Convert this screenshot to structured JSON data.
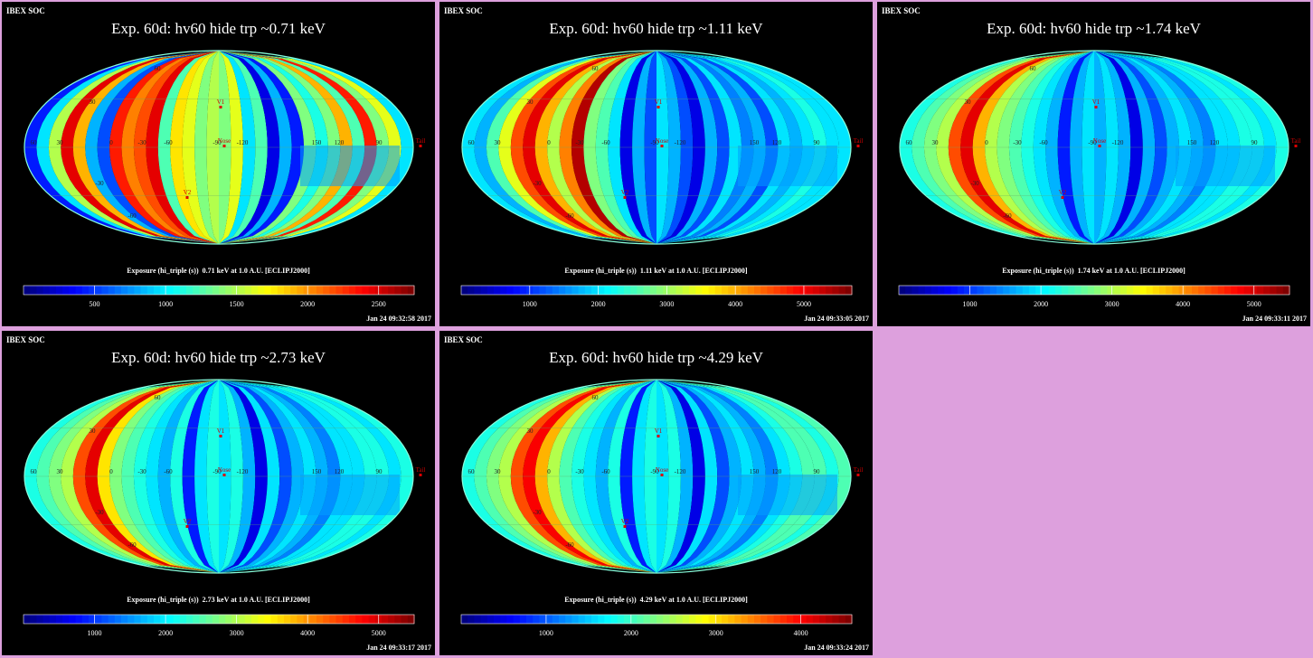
{
  "background_color": "#dda0dd",
  "panels": [
    {
      "org": "IBEX SOC",
      "title": "Exp.   60d: hv60 hide trp ~0.71 keV",
      "colorbar_label": "Exposure (hi_triple (s))  0.71 keV at 1.0 A.U. [ECLIPJ2000]",
      "timestamp": "Jan 24 09:32:58 2017"
    },
    {
      "org": "IBEX SOC",
      "title": "Exp.   60d: hv60 hide trp ~1.11 keV",
      "colorbar_label": "Exposure (hi_triple (s))  1.11 keV at 1.0 A.U. [ECLIPJ2000]",
      "timestamp": "Jan 24 09:33:05 2017"
    },
    {
      "org": "IBEX SOC",
      "title": "Exp.   60d: hv60 hide trp ~1.74 keV",
      "colorbar_label": "Exposure (hi_triple (s))  1.74 keV at 1.0 A.U. [ECLIPJ2000]",
      "timestamp": "Jan 24 09:33:11 2017"
    },
    {
      "org": "IBEX SOC",
      "title": "Exp.   60d: hv60 hide trp ~2.73 keV",
      "colorbar_label": "Exposure (hi_triple (s))  2.73 keV at 1.0 A.U. [ECLIPJ2000]",
      "timestamp": "Jan 24 09:33:17 2017"
    },
    {
      "org": "IBEX SOC",
      "title": "Exp.   60d: hv60 hide trp ~4.29 keV",
      "colorbar_label": "Exposure (hi_triple (s))  4.29 keV at 1.0 A.U. [ECLIPJ2000]",
      "timestamp": "Jan 24 09:33:24 2017"
    }
  ],
  "chart_data": [
    {
      "type": "heatmap",
      "title": "Exp.   60d: hv60 hide trp ~0.71 keV",
      "projection": "mollweide",
      "lon_labels": [
        "60",
        "30",
        "0",
        "-30",
        "-60",
        "-90",
        "-120",
        "150",
        "120",
        "90"
      ],
      "lat_labels": [
        "60",
        "30",
        "-30",
        "-60"
      ],
      "markers": [
        "V1",
        "Nose",
        "V2",
        "Tail"
      ],
      "colorbar": {
        "ticks": [
          500,
          1000,
          1500,
          2000,
          2500
        ],
        "range": [
          0,
          2750
        ],
        "colormap": "jet"
      },
      "band_values": [
        0.15,
        0.35,
        0.55,
        0.9,
        0.7,
        0.3,
        0.2,
        0.85,
        0.75,
        0.8,
        0.9,
        0.45,
        0.65,
        0.6,
        0.5,
        0.55,
        0.5,
        0.6,
        0.35,
        0.45,
        0.1,
        0.3,
        0.15,
        0.5,
        0.4,
        0.5,
        0.7,
        0.45,
        0.85,
        0.5,
        0.6,
        0.35
      ]
    },
    {
      "type": "heatmap",
      "title": "Exp.   60d: hv60 hide trp ~1.11 keV",
      "projection": "mollweide",
      "lon_labels": [
        "60",
        "30",
        "0",
        "-30",
        "-60",
        "-90",
        "-120",
        "150",
        "120",
        "90"
      ],
      "lat_labels": [
        "60",
        "30",
        "-30",
        "-60"
      ],
      "markers": [
        "V1",
        "Nose",
        "V2",
        "Tail"
      ],
      "colorbar": {
        "ticks": [
          1000,
          2000,
          3000,
          4000,
          5000
        ],
        "range": [
          0,
          5700
        ],
        "colormap": "jet"
      },
      "band_values": [
        0.35,
        0.3,
        0.45,
        0.6,
        0.8,
        0.9,
        0.7,
        0.55,
        0.75,
        0.95,
        0.5,
        0.45,
        0.35,
        0.1,
        0.3,
        0.2,
        0.35,
        0.3,
        0.2,
        0.1,
        0.3,
        0.2,
        0.35,
        0.25,
        0.3,
        0.2,
        0.35,
        0.3,
        0.35,
        0.4,
        0.35,
        0.35
      ]
    },
    {
      "type": "heatmap",
      "title": "Exp.   60d: hv60 hide trp ~1.74 keV",
      "projection": "mollweide",
      "lon_labels": [
        "60",
        "30",
        "0",
        "-30",
        "-60",
        "-90",
        "-120",
        "150",
        "120",
        "90"
      ],
      "lat_labels": [
        "60",
        "30",
        "-30",
        "-60"
      ],
      "markers": [
        "V1",
        "Nose",
        "V2",
        "Tail"
      ],
      "colorbar": {
        "ticks": [
          1000,
          2000,
          3000,
          4000,
          5000
        ],
        "range": [
          0,
          5500
        ],
        "colormap": "jet"
      },
      "band_values": [
        0.4,
        0.45,
        0.5,
        0.55,
        0.8,
        0.9,
        0.7,
        0.55,
        0.5,
        0.45,
        0.4,
        0.35,
        0.3,
        0.15,
        0.3,
        0.35,
        0.3,
        0.35,
        0.3,
        0.1,
        0.3,
        0.2,
        0.3,
        0.35,
        0.3,
        0.25,
        0.35,
        0.35,
        0.4,
        0.4,
        0.35,
        0.4
      ]
    },
    {
      "type": "heatmap",
      "title": "Exp.   60d: hv60 hide trp ~2.73 keV",
      "projection": "mollweide",
      "lon_labels": [
        "60",
        "30",
        "0",
        "-30",
        "-60",
        "-90",
        "-120",
        "150",
        "120",
        "90"
      ],
      "lat_labels": [
        "60",
        "30",
        "-30",
        "-60"
      ],
      "markers": [
        "V1",
        "Nose",
        "V2",
        "Tail"
      ],
      "colorbar": {
        "ticks": [
          1000,
          2000,
          3000,
          4000,
          5000
        ],
        "range": [
          0,
          5500
        ],
        "colormap": "jet"
      },
      "band_values": [
        0.4,
        0.45,
        0.5,
        0.55,
        0.8,
        0.9,
        0.65,
        0.5,
        0.45,
        0.4,
        0.35,
        0.3,
        0.4,
        0.15,
        0.35,
        0.4,
        0.35,
        0.4,
        0.3,
        0.1,
        0.35,
        0.2,
        0.3,
        0.35,
        0.3,
        0.25,
        0.35,
        0.35,
        0.4,
        0.4,
        0.35,
        0.4
      ]
    },
    {
      "type": "heatmap",
      "title": "Exp.   60d: hv60 hide trp ~4.29 keV",
      "projection": "mollweide",
      "lon_labels": [
        "60",
        "30",
        "0",
        "-30",
        "-60",
        "-90",
        "-120",
        "150",
        "120",
        "90"
      ],
      "lat_labels": [
        "60",
        "30",
        "-30",
        "-60"
      ],
      "markers": [
        "V1",
        "Nose",
        "V2",
        "Tail"
      ],
      "colorbar": {
        "ticks": [
          1000,
          2000,
          3000,
          4000
        ],
        "range": [
          0,
          4600
        ],
        "colormap": "jet"
      },
      "band_values": [
        0.4,
        0.45,
        0.5,
        0.55,
        0.8,
        0.88,
        0.7,
        0.55,
        0.45,
        0.4,
        0.35,
        0.3,
        0.4,
        0.15,
        0.35,
        0.4,
        0.35,
        0.4,
        0.3,
        0.1,
        0.35,
        0.2,
        0.3,
        0.35,
        0.3,
        0.25,
        0.35,
        0.4,
        0.45,
        0.45,
        0.4,
        0.45
      ]
    }
  ]
}
